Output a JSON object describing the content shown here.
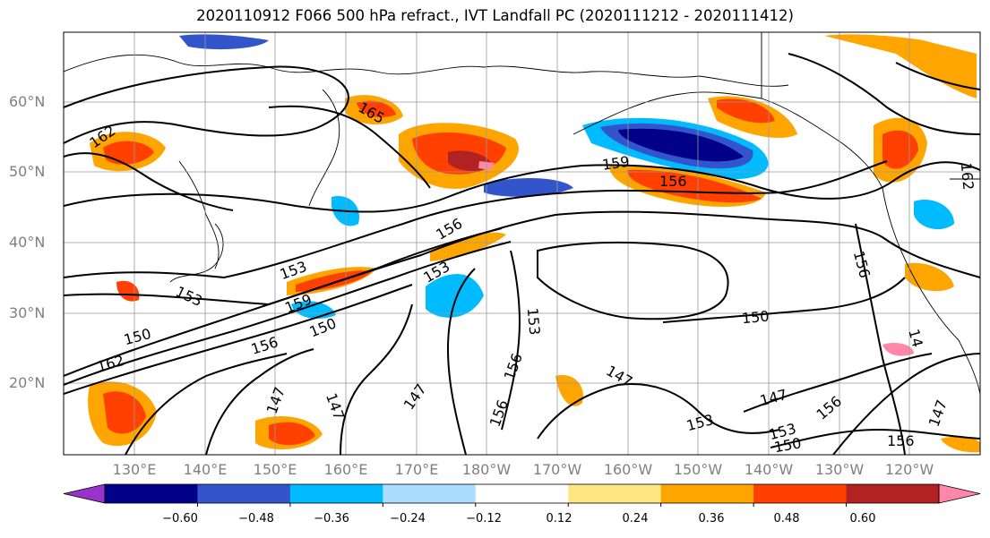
{
  "title": "2020110912 F066 500 hPa refract., IVT Landfall PC (2020111212 - 2020111412)",
  "lat_labels": [
    "60°N",
    "50°N",
    "40°N",
    "30°N",
    "20°N"
  ],
  "lon_labels": [
    "130°E",
    "140°E",
    "150°E",
    "160°E",
    "170°E",
    "180°W",
    "170°W",
    "160°W",
    "150°W",
    "140°W",
    "130°W",
    "120°W"
  ],
  "contour_labels": [
    "162",
    "165",
    "159",
    "156",
    "156",
    "153",
    "153",
    "153",
    "159",
    "150",
    "150",
    "156",
    "150",
    "162",
    "153",
    "147",
    "147",
    "147",
    "156",
    "156",
    "147",
    "147",
    "153",
    "150",
    "156",
    "156",
    "147",
    "162",
    "156",
    "153",
    "14"
  ],
  "colorbar": {
    "ticks": [
      "−0.60",
      "−0.48",
      "−0.36",
      "−0.24",
      "−0.12",
      "0.12",
      "0.24",
      "0.36",
      "0.48",
      "0.60"
    ],
    "colors": [
      "#9933cc",
      "#000088",
      "#3355cc",
      "#00bbff",
      "#aaddff",
      "#ffffff",
      "#ffe680",
      "#ffa500",
      "#ff4000",
      "#b22222",
      "#ff88aa"
    ]
  }
}
